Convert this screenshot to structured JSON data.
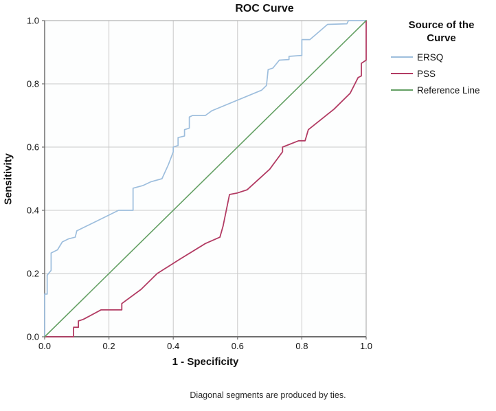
{
  "title": "ROC Curve",
  "axes": {
    "x_label": "1 - Specificity",
    "y_label": "Sensitivity"
  },
  "legend": {
    "title": "Source of the Curve",
    "entries": [
      {
        "label": "ERSQ",
        "color": "#9dbedd"
      },
      {
        "label": "PSS",
        "color": "#b23b63"
      },
      {
        "label": "Reference Line",
        "color": "#64a064"
      }
    ]
  },
  "footnote": "Diagonal segments are produced by ties.",
  "colors": {
    "grid": "#c9c9c9",
    "frame": "#a0a0a0",
    "axis": "#6e6e6e",
    "plot_bg": "#fdfefe",
    "text": "#111111"
  },
  "chart_data": {
    "type": "line",
    "title": "ROC Curve",
    "xlabel": "1 - Specificity",
    "ylabel": "Sensitivity",
    "xlim": [
      0,
      1
    ],
    "ylim": [
      0,
      1
    ],
    "grid": true,
    "grid_values": [
      0.2,
      0.4,
      0.6,
      0.8
    ],
    "x_tick_values": [
      0.0,
      0.2,
      0.4,
      0.6,
      0.8,
      1.0
    ],
    "x_tick_labels": [
      "0.0",
      "0.2",
      "0.4",
      "0.6",
      "0.8",
      "1.0"
    ],
    "y_tick_values": [
      0.0,
      0.2,
      0.4,
      0.6,
      0.8,
      1.0
    ],
    "y_tick_labels": [
      "0.0",
      "0.2",
      "0.4",
      "0.6",
      "0.8",
      "1.0"
    ],
    "legend_position": "right",
    "legend_title": "Source of the Curve",
    "footnote": "Diagonal segments are produced by ties.",
    "series": [
      {
        "name": "ERSQ",
        "color": "#9dbedd",
        "width": 1.7,
        "points": [
          [
            0.0,
            0.0
          ],
          [
            0.0,
            0.135
          ],
          [
            0.008,
            0.135
          ],
          [
            0.008,
            0.195
          ],
          [
            0.02,
            0.21
          ],
          [
            0.02,
            0.265
          ],
          [
            0.04,
            0.275
          ],
          [
            0.055,
            0.3
          ],
          [
            0.075,
            0.31
          ],
          [
            0.095,
            0.315
          ],
          [
            0.1,
            0.335
          ],
          [
            0.13,
            0.35
          ],
          [
            0.16,
            0.365
          ],
          [
            0.23,
            0.4
          ],
          [
            0.275,
            0.4
          ],
          [
            0.275,
            0.47
          ],
          [
            0.305,
            0.478
          ],
          [
            0.33,
            0.49
          ],
          [
            0.365,
            0.5
          ],
          [
            0.385,
            0.545
          ],
          [
            0.4,
            0.585
          ],
          [
            0.4,
            0.6
          ],
          [
            0.415,
            0.605
          ],
          [
            0.415,
            0.63
          ],
          [
            0.435,
            0.635
          ],
          [
            0.435,
            0.655
          ],
          [
            0.45,
            0.66
          ],
          [
            0.45,
            0.695
          ],
          [
            0.46,
            0.7
          ],
          [
            0.5,
            0.7
          ],
          [
            0.52,
            0.715
          ],
          [
            0.675,
            0.78
          ],
          [
            0.69,
            0.795
          ],
          [
            0.695,
            0.845
          ],
          [
            0.71,
            0.85
          ],
          [
            0.73,
            0.875
          ],
          [
            0.76,
            0.877
          ],
          [
            0.76,
            0.887
          ],
          [
            0.8,
            0.89
          ],
          [
            0.8,
            0.94
          ],
          [
            0.825,
            0.94
          ],
          [
            0.88,
            0.988
          ],
          [
            0.94,
            0.99
          ],
          [
            0.945,
            1.0
          ],
          [
            1.0,
            1.0
          ]
        ]
      },
      {
        "name": "PSS",
        "color": "#b23b63",
        "width": 1.8,
        "points": [
          [
            0.0,
            0.0
          ],
          [
            0.09,
            0.0
          ],
          [
            0.09,
            0.03
          ],
          [
            0.105,
            0.03
          ],
          [
            0.105,
            0.05
          ],
          [
            0.12,
            0.055
          ],
          [
            0.175,
            0.085
          ],
          [
            0.24,
            0.085
          ],
          [
            0.24,
            0.105
          ],
          [
            0.3,
            0.15
          ],
          [
            0.35,
            0.2
          ],
          [
            0.42,
            0.245
          ],
          [
            0.5,
            0.295
          ],
          [
            0.545,
            0.315
          ],
          [
            0.555,
            0.35
          ],
          [
            0.575,
            0.45
          ],
          [
            0.6,
            0.455
          ],
          [
            0.63,
            0.465
          ],
          [
            0.7,
            0.53
          ],
          [
            0.74,
            0.585
          ],
          [
            0.74,
            0.6
          ],
          [
            0.79,
            0.62
          ],
          [
            0.81,
            0.62
          ],
          [
            0.82,
            0.655
          ],
          [
            0.9,
            0.72
          ],
          [
            0.95,
            0.77
          ],
          [
            0.96,
            0.79
          ],
          [
            0.975,
            0.82
          ],
          [
            0.985,
            0.825
          ],
          [
            0.985,
            0.865
          ],
          [
            1.0,
            0.875
          ],
          [
            1.0,
            1.0
          ]
        ]
      },
      {
        "name": "Reference Line",
        "color": "#64a064",
        "width": 1.6,
        "points": [
          [
            0.0,
            0.0
          ],
          [
            1.0,
            1.0
          ]
        ]
      }
    ]
  }
}
